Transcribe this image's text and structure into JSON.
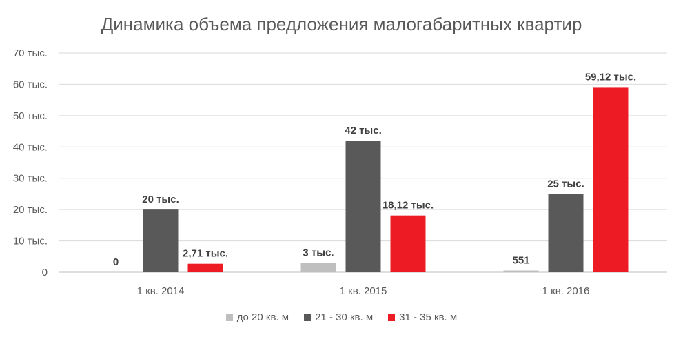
{
  "chart_data": {
    "type": "bar",
    "title": "Динамика объема предложения малогабаритных квартир",
    "categories": [
      "1 кв. 2014",
      "1 кв. 2015",
      "1 кв. 2016"
    ],
    "ylim": [
      0,
      70
    ],
    "y_ticks": [
      0,
      10,
      20,
      30,
      40,
      50,
      60,
      70
    ],
    "y_tick_labels": [
      "0",
      "10 тыс.",
      "20 тыс.",
      "30 тыс.",
      "40 тыс.",
      "50 тыс.",
      "60 тыс.",
      "70 тыс."
    ],
    "grid": true,
    "legend_position": "bottom",
    "series": [
      {
        "name": "до 20 кв. м",
        "color": "#bfbfbf",
        "values": [
          0,
          3,
          0.551
        ],
        "labels": [
          "0",
          "3 тыс.",
          "551"
        ]
      },
      {
        "name": "21 - 30 кв. м",
        "color": "#595959",
        "values": [
          20,
          42,
          25
        ],
        "labels": [
          "20 тыс.",
          "42 тыс.",
          "25 тыс."
        ]
      },
      {
        "name": "31 - 35 кв. м",
        "color": "#ed1c24",
        "values": [
          2.71,
          18.12,
          59.12
        ],
        "labels": [
          "2,71 тыс.",
          "18,12 тыс.",
          "59,12 тыс."
        ]
      }
    ]
  }
}
